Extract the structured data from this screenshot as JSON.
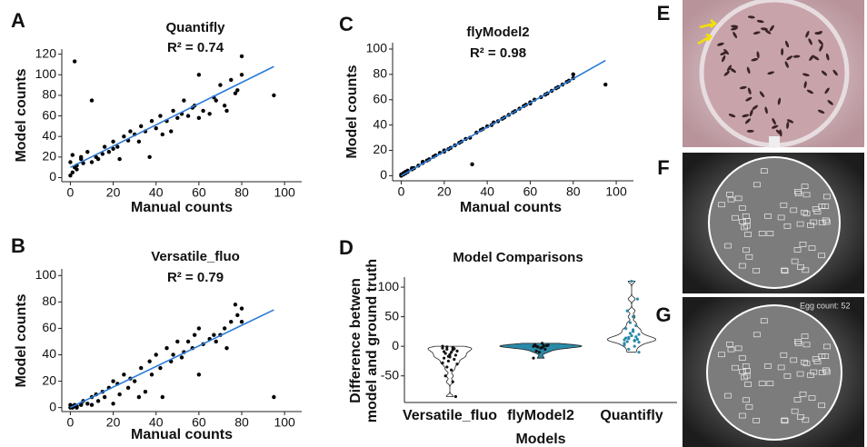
{
  "chart_data": [
    {
      "type": "scatter",
      "label": "A",
      "title": "Quantifly",
      "annotation": "R² = 0.74",
      "xlabel": "Manual counts",
      "ylabel": "Model counts",
      "color": "#000000",
      "x": [
        0,
        0,
        1,
        1,
        2,
        2,
        3,
        3,
        5,
        5,
        6,
        8,
        10,
        10,
        12,
        13,
        15,
        16,
        18,
        20,
        20,
        22,
        23,
        25,
        27,
        28,
        30,
        32,
        33,
        35,
        37,
        38,
        40,
        42,
        43,
        45,
        47,
        48,
        50,
        52,
        53,
        55,
        57,
        58,
        60,
        60,
        62,
        65,
        67,
        68,
        70,
        72,
        73,
        75,
        77,
        78,
        80,
        80,
        95
      ],
      "values": [
        2,
        15,
        5,
        22,
        10,
        113,
        8,
        12,
        18,
        20,
        14,
        25,
        15,
        75,
        20,
        18,
        23,
        30,
        25,
        28,
        35,
        30,
        18,
        40,
        36,
        45,
        42,
        35,
        50,
        45,
        20,
        55,
        48,
        60,
        42,
        55,
        45,
        65,
        58,
        62,
        75,
        60,
        68,
        70,
        58,
        100,
        65,
        62,
        78,
        75,
        90,
        70,
        65,
        95,
        82,
        85,
        100,
        118,
        80
      ],
      "fit": {
        "x": [
          0,
          95
        ],
        "values": [
          10,
          108
        ],
        "color": "#2b7bd6"
      },
      "xlim": [
        -4,
        108
      ],
      "ylim": [
        -4,
        125
      ],
      "xticks": [
        0,
        20,
        40,
        60,
        80,
        100
      ],
      "yticks": [
        0,
        20,
        40,
        60,
        80,
        100,
        120
      ]
    },
    {
      "type": "scatter",
      "label": "C",
      "title": "flyModel2",
      "annotation": "R² = 0.98",
      "xlabel": "Manual counts",
      "ylabel": "Model counts",
      "color": "#000000",
      "x": [
        0,
        0,
        1,
        1,
        2,
        2,
        3,
        3,
        5,
        5,
        6,
        8,
        10,
        10,
        12,
        13,
        15,
        16,
        18,
        20,
        20,
        22,
        23,
        25,
        27,
        28,
        30,
        32,
        33,
        35,
        37,
        38,
        40,
        42,
        43,
        45,
        47,
        48,
        50,
        52,
        53,
        55,
        57,
        58,
        60,
        60,
        62,
        65,
        67,
        68,
        70,
        72,
        73,
        75,
        77,
        78,
        80,
        80,
        95
      ],
      "values": [
        0,
        1,
        2,
        1,
        3,
        2,
        3,
        4,
        5,
        6,
        6,
        8,
        10,
        11,
        12,
        13,
        15,
        16,
        18,
        19,
        20,
        21,
        22,
        24,
        26,
        27,
        29,
        30,
        9,
        34,
        36,
        37,
        39,
        40,
        42,
        43,
        45,
        46,
        48,
        50,
        51,
        53,
        55,
        56,
        57,
        58,
        60,
        62,
        64,
        65,
        67,
        69,
        70,
        72,
        74,
        75,
        77,
        80,
        72
      ],
      "fit": {
        "x": [
          0,
          95
        ],
        "values": [
          0,
          91
        ],
        "color": "#2b7bd6"
      },
      "xlim": [
        -4,
        108
      ],
      "ylim": [
        -4,
        105
      ],
      "xticks": [
        0,
        20,
        40,
        60,
        80,
        100
      ],
      "yticks": [
        0,
        20,
        40,
        60,
        80,
        100
      ]
    },
    {
      "type": "scatter",
      "label": "B",
      "title": "Versatile_fluo",
      "annotation": "R² = 0.79",
      "xlabel": "Manual counts",
      "ylabel": "Model counts",
      "color": "#000000",
      "x": [
        0,
        0,
        1,
        1,
        2,
        2,
        3,
        3,
        5,
        5,
        6,
        8,
        10,
        10,
        12,
        13,
        15,
        16,
        18,
        20,
        20,
        22,
        23,
        25,
        27,
        28,
        30,
        32,
        33,
        35,
        37,
        38,
        40,
        42,
        43,
        45,
        47,
        48,
        50,
        52,
        53,
        55,
        57,
        58,
        60,
        60,
        62,
        65,
        67,
        68,
        70,
        72,
        73,
        75,
        77,
        78,
        80,
        80,
        95
      ],
      "values": [
        0,
        2,
        1,
        0,
        1,
        2,
        0,
        1,
        3,
        2,
        5,
        3,
        8,
        2,
        10,
        5,
        12,
        8,
        15,
        20,
        3,
        18,
        10,
        25,
        15,
        22,
        20,
        8,
        30,
        12,
        35,
        25,
        40,
        30,
        8,
        45,
        35,
        40,
        50,
        38,
        42,
        50,
        45,
        55,
        25,
        60,
        48,
        52,
        55,
        50,
        55,
        60,
        45,
        65,
        78,
        70,
        75,
        65,
        8
      ],
      "fit": {
        "x": [
          0,
          95
        ],
        "values": [
          0,
          74
        ],
        "color": "#2b7bd6"
      },
      "xlim": [
        -4,
        108
      ],
      "ylim": [
        -3,
        105
      ],
      "xticks": [
        0,
        20,
        40,
        60,
        80,
        100
      ],
      "yticks": [
        0,
        20,
        40,
        60,
        80,
        100
      ]
    },
    {
      "type": "violin",
      "label": "D",
      "title": "Model Comparisons",
      "xlabel": "Models",
      "ylabel": [
        "Difference betwen",
        "model and ground truth"
      ],
      "series": [
        {
          "name": "Versatile_fluo",
          "color": "#111111",
          "fill": "#ffffff",
          "values": [
            0,
            -2,
            -5,
            -8,
            -10,
            -12,
            -15,
            -18,
            -20,
            -22,
            -25,
            -3,
            -6,
            -1,
            -30,
            -40,
            -50,
            -85,
            -14,
            -9,
            -4,
            -17,
            -28,
            -60,
            -35
          ]
        },
        {
          "name": "flyModel2",
          "color": "#111111",
          "fill": "#2a8aa8",
          "values": [
            0,
            1,
            -1,
            2,
            -2,
            0,
            1,
            -3,
            3,
            -5,
            -10,
            -20,
            0,
            -1,
            2,
            5,
            -8,
            1
          ]
        },
        {
          "name": "Quantifly",
          "color": "#2a8aa8",
          "fill": "#ffffff",
          "values": [
            5,
            10,
            15,
            20,
            25,
            8,
            12,
            18,
            30,
            35,
            40,
            2,
            0,
            -5,
            -10,
            50,
            60,
            80,
            110,
            14,
            16,
            22,
            11,
            9,
            13,
            7,
            28
          ]
        }
      ],
      "ylim": [
        -95,
        117
      ],
      "yticks": [
        -50,
        0,
        50,
        100
      ]
    }
  ],
  "images": [
    {
      "label": "E"
    },
    {
      "label": "F"
    },
    {
      "label": "G",
      "overlay": "Egg count: 52"
    }
  ]
}
